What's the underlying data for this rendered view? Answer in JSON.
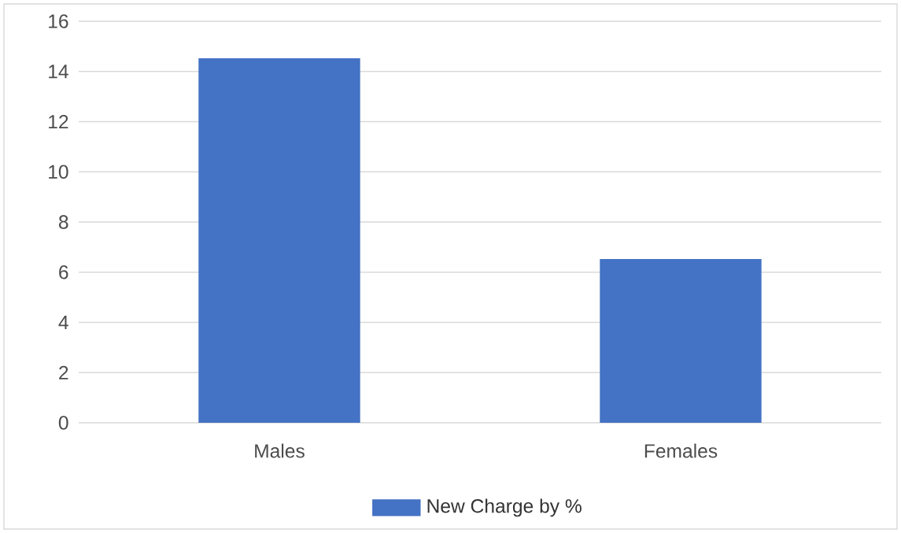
{
  "chart_data": {
    "type": "bar",
    "categories": [
      "Males",
      "Females"
    ],
    "series": [
      {
        "name": "New Charge by %",
        "color": "#4472c4",
        "values": [
          14.5,
          6.5
        ]
      }
    ],
    "ylim": [
      0,
      16
    ],
    "yticks": [
      0,
      2,
      4,
      6,
      8,
      10,
      12,
      14,
      16
    ],
    "grid": "y",
    "legend": "bottom"
  }
}
